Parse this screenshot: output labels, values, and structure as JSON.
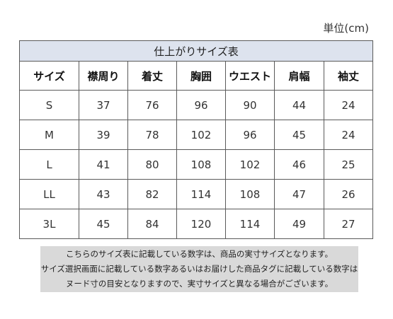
{
  "unit_label": "単位(cm)",
  "table": {
    "title": "仕上がりサイズ表",
    "headers": [
      "サイズ",
      "襟周り",
      "着丈",
      "胸囲",
      "ウエスト",
      "肩幅",
      "袖丈"
    ],
    "rows": [
      [
        "S",
        "37",
        "76",
        "96",
        "90",
        "44",
        "24"
      ],
      [
        "M",
        "39",
        "78",
        "102",
        "96",
        "45",
        "24"
      ],
      [
        "L",
        "41",
        "80",
        "108",
        "102",
        "46",
        "25"
      ],
      [
        "LL",
        "43",
        "82",
        "114",
        "108",
        "47",
        "26"
      ],
      [
        "3L",
        "45",
        "84",
        "120",
        "114",
        "49",
        "27"
      ]
    ]
  },
  "note": {
    "lines": [
      "こちらのサイズ表に記載している数字は、商品の実寸サイズとなります。",
      "サイズ選択画面に記載している数字あるいはお届けした商品タグに記載している数字は",
      "ヌード寸の目安となりますので、実寸サイズと異なる場合がございます。"
    ]
  },
  "colors": {
    "title_background": "#dde3ee",
    "note_background": "#d9d9d9",
    "border": "#5a5a5a"
  }
}
